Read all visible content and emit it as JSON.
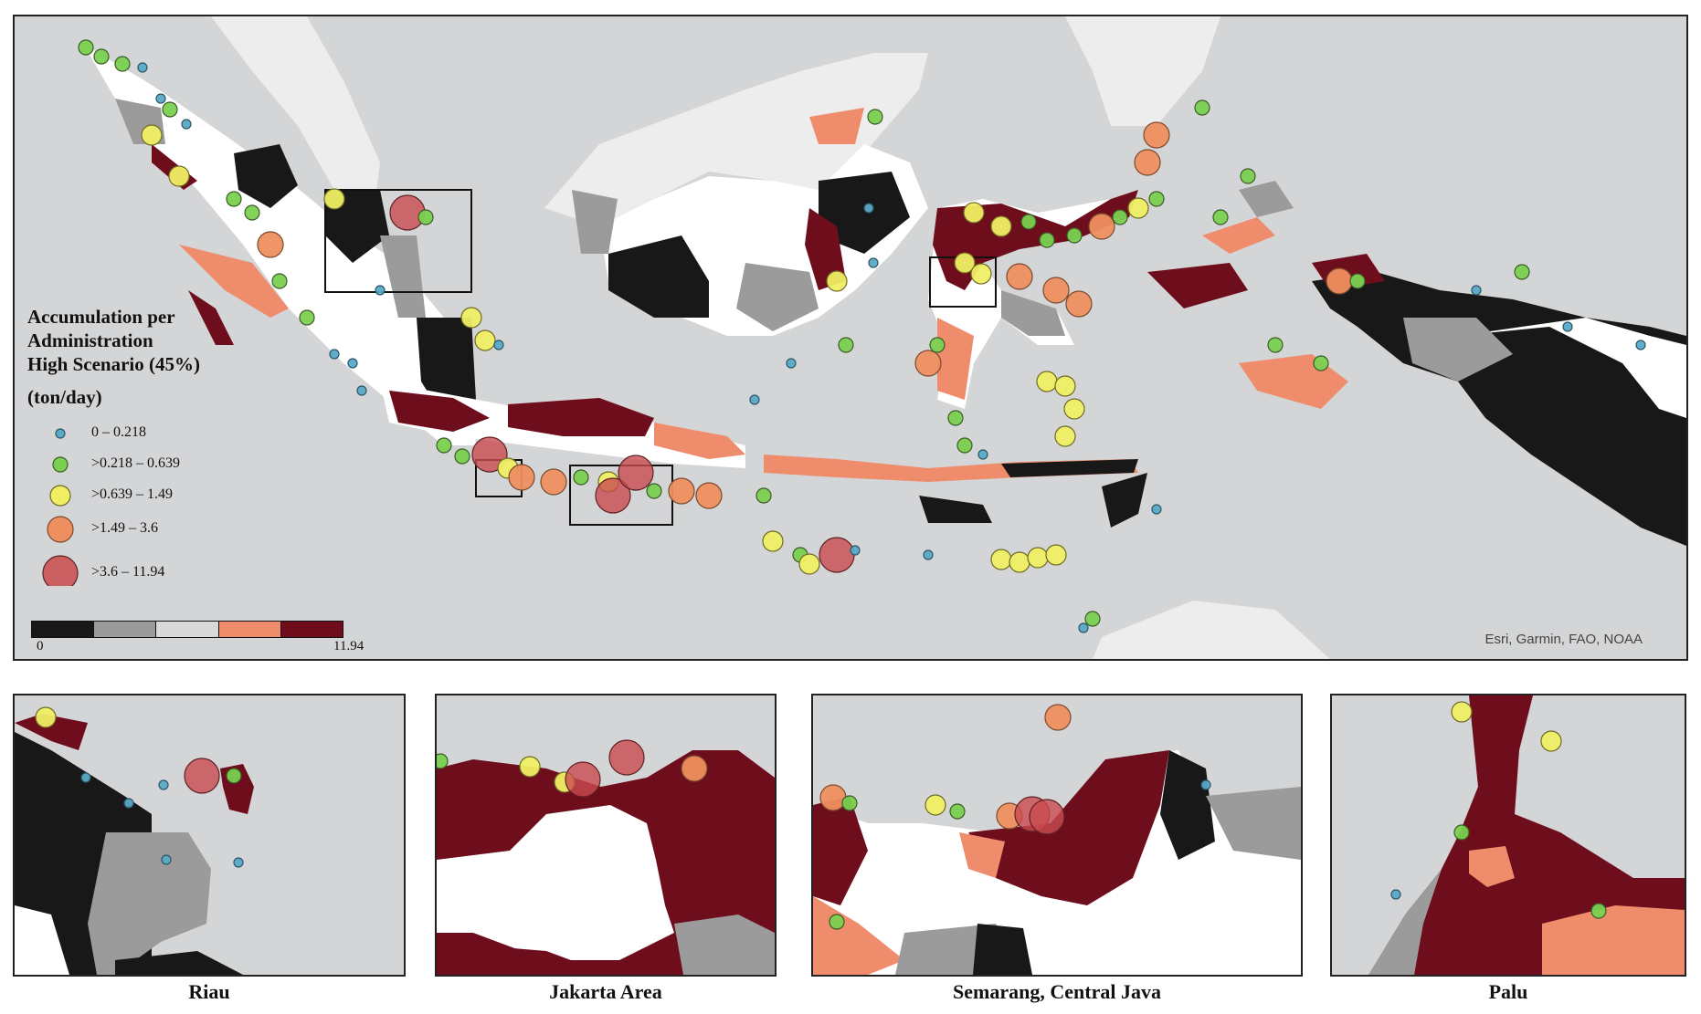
{
  "legend": {
    "title_line1": "Accumulation per",
    "title_line2": "Administration",
    "title_line3": "High Scenario (45%)",
    "unit": "(ton/day)",
    "classes": [
      {
        "label": "0 – 0.218",
        "color": "#5aa9c6"
      },
      {
        "label": ">0.218 – 0.639",
        "color": "#79d14f"
      },
      {
        "label": ">0.639 – 1.49",
        "color": "#f0ef64"
      },
      {
        "label": ">1.49 – 3.6",
        "color": "#ee8f5f"
      },
      {
        "label": ">3.6 – 11.94",
        "color": "#c94b4f"
      }
    ],
    "ramp_colors": [
      "#181818",
      "#9b9b9b",
      "#d9d9d9",
      "#ee8c6c",
      "#6e0d1c"
    ],
    "ramp_min": "0",
    "ramp_max": "11.94"
  },
  "credit": "Esri, Garmin, FAO, NOAA",
  "insets": [
    {
      "caption": "Riau"
    },
    {
      "caption": "Jakarta Area"
    },
    {
      "caption": "Semarang, Central Java"
    },
    {
      "caption": "Palu"
    }
  ],
  "colors": {
    "sea": "#d3d5d7",
    "neighbor_land": "#ededed",
    "class_lowest": "#181818",
    "class_low": "#9b9b9b",
    "class_mid": "#ffffff",
    "class_high": "#ee8c6c",
    "class_highest": "#6e0d1c"
  }
}
